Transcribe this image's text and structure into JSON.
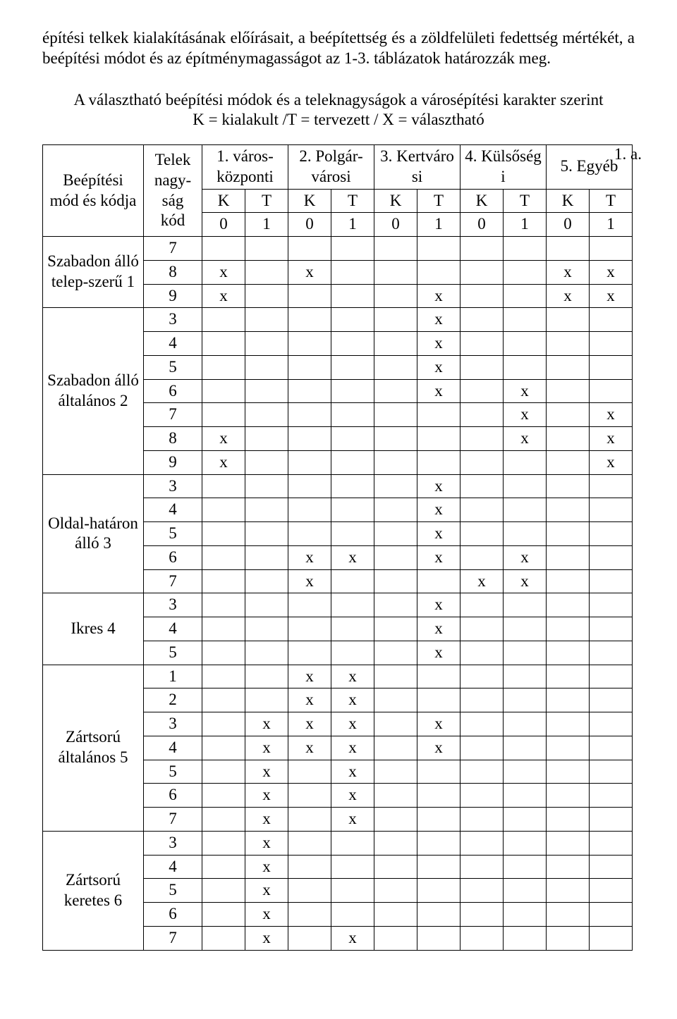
{
  "paragraph": "építési telkek kialakításának előírásait, a beépítettség és a zöldfelületi fedettség mértékét, a beépítési módot és az építménymagasságot az 1-3. táblázatok határozzák meg.",
  "heading_line1": "A választható beépítési módok és a teleknagyságok a városépítési karakter szerint",
  "heading_line2": "K = kialakult /T = tervezett / X = választható",
  "margin_note": "1. a.",
  "headers": {
    "mode": "Beépítési mód és kódja",
    "telek": "Telek nagy-ság kód",
    "c1": "1. város-központi",
    "c2": "2. Polgár-városi",
    "c3": "3. Kertváro si",
    "c4": "4. Külsőség i",
    "c5": "5. Egyéb",
    "K": "K",
    "T": "T",
    "z0": "0",
    "z1": "1"
  },
  "groups": [
    {
      "label": "Szabadon álló telep-szerű  1",
      "rows": [
        {
          "kod": "7",
          "cells": [
            "",
            "",
            "",
            "",
            "",
            "",
            "",
            "",
            "",
            ""
          ]
        },
        {
          "kod": "8",
          "cells": [
            "x",
            "",
            "x",
            "",
            "",
            "",
            "",
            "",
            "x",
            "x"
          ]
        },
        {
          "kod": "9",
          "cells": [
            "x",
            "",
            "",
            "",
            "",
            "x",
            "",
            "",
            "x",
            "x"
          ]
        }
      ]
    },
    {
      "label": "Szabadon álló általános 2",
      "rows": [
        {
          "kod": "3",
          "cells": [
            "",
            "",
            "",
            "",
            "",
            "x",
            "",
            "",
            "",
            ""
          ]
        },
        {
          "kod": "4",
          "cells": [
            "",
            "",
            "",
            "",
            "",
            "x",
            "",
            "",
            "",
            ""
          ]
        },
        {
          "kod": "5",
          "cells": [
            "",
            "",
            "",
            "",
            "",
            "x",
            "",
            "",
            "",
            ""
          ]
        },
        {
          "kod": "6",
          "cells": [
            "",
            "",
            "",
            "",
            "",
            "x",
            "",
            "x",
            "",
            ""
          ]
        },
        {
          "kod": "7",
          "cells": [
            "",
            "",
            "",
            "",
            "",
            "",
            "",
            "x",
            "",
            "x"
          ]
        },
        {
          "kod": "8",
          "cells": [
            "x",
            "",
            "",
            "",
            "",
            "",
            "",
            "x",
            "",
            "x"
          ]
        },
        {
          "kod": "9",
          "cells": [
            "x",
            "",
            "",
            "",
            "",
            "",
            "",
            "",
            "",
            "x"
          ]
        }
      ]
    },
    {
      "label": "Oldal-határon álló 3",
      "rows": [
        {
          "kod": "3",
          "cells": [
            "",
            "",
            "",
            "",
            "",
            "x",
            "",
            "",
            "",
            ""
          ]
        },
        {
          "kod": "4",
          "cells": [
            "",
            "",
            "",
            "",
            "",
            "x",
            "",
            "",
            "",
            ""
          ]
        },
        {
          "kod": "5",
          "cells": [
            "",
            "",
            "",
            "",
            "",
            "x",
            "",
            "",
            "",
            ""
          ]
        },
        {
          "kod": "6",
          "cells": [
            "",
            "",
            "x",
            "x",
            "",
            "x",
            "",
            "x",
            "",
            ""
          ]
        },
        {
          "kod": "7",
          "cells": [
            "",
            "",
            "x",
            "",
            "",
            "",
            "x",
            "x",
            "",
            ""
          ]
        }
      ]
    },
    {
      "label": "Ikres 4",
      "rows": [
        {
          "kod": "3",
          "cells": [
            "",
            "",
            "",
            "",
            "",
            "x",
            "",
            "",
            "",
            ""
          ]
        },
        {
          "kod": "4",
          "cells": [
            "",
            "",
            "",
            "",
            "",
            "x",
            "",
            "",
            "",
            ""
          ]
        },
        {
          "kod": "5",
          "cells": [
            "",
            "",
            "",
            "",
            "",
            "x",
            "",
            "",
            "",
            ""
          ]
        }
      ]
    },
    {
      "label": "Zártsorú általános 5",
      "rows": [
        {
          "kod": "1",
          "cells": [
            "",
            "",
            "x",
            "x",
            "",
            "",
            "",
            "",
            "",
            ""
          ]
        },
        {
          "kod": "2",
          "cells": [
            "",
            "",
            "x",
            "x",
            "",
            "",
            "",
            "",
            "",
            ""
          ]
        },
        {
          "kod": "3",
          "cells": [
            "",
            "x",
            "x",
            "x",
            "",
            "x",
            "",
            "",
            "",
            ""
          ]
        },
        {
          "kod": "4",
          "cells": [
            "",
            "x",
            "x",
            "x",
            "",
            "x",
            "",
            "",
            "",
            ""
          ]
        },
        {
          "kod": "5",
          "cells": [
            "",
            "x",
            "",
            "x",
            "",
            "",
            "",
            "",
            "",
            ""
          ]
        },
        {
          "kod": "6",
          "cells": [
            "",
            "x",
            "",
            "x",
            "",
            "",
            "",
            "",
            "",
            ""
          ]
        },
        {
          "kod": "7",
          "cells": [
            "",
            "x",
            "",
            "x",
            "",
            "",
            "",
            "",
            "",
            ""
          ]
        }
      ]
    },
    {
      "label": "Zártsorú keretes 6",
      "rows": [
        {
          "kod": "3",
          "cells": [
            "",
            "x",
            "",
            "",
            "",
            "",
            "",
            "",
            "",
            ""
          ]
        },
        {
          "kod": "4",
          "cells": [
            "",
            "x",
            "",
            "",
            "",
            "",
            "",
            "",
            "",
            ""
          ]
        },
        {
          "kod": "5",
          "cells": [
            "",
            "x",
            "",
            "",
            "",
            "",
            "",
            "",
            "",
            ""
          ]
        },
        {
          "kod": "6",
          "cells": [
            "",
            "x",
            "",
            "",
            "",
            "",
            "",
            "",
            "",
            ""
          ]
        },
        {
          "kod": "7",
          "cells": [
            "",
            "x",
            "",
            "x",
            "",
            "",
            "",
            "",
            "",
            ""
          ]
        }
      ]
    }
  ]
}
